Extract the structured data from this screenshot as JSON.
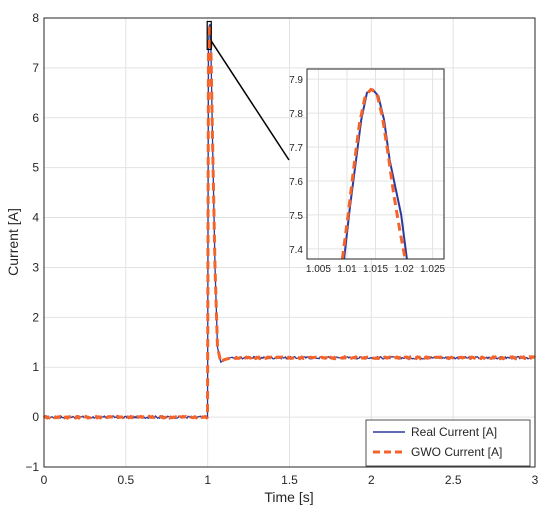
{
  "chart_data": [
    {
      "type": "line",
      "xlabel": "Time [s]",
      "ylabel": "Current [A]",
      "xlim": [
        0,
        3
      ],
      "ylim": [
        -1,
        8
      ],
      "xticks": [
        0,
        0.5,
        1,
        1.5,
        2,
        2.5,
        3
      ],
      "xtick_labels": [
        "0",
        "0.5",
        "1",
        "1.5",
        "2",
        "2.5",
        "3"
      ],
      "yticks": [
        -1,
        0,
        1,
        2,
        3,
        4,
        5,
        6,
        7,
        8
      ],
      "ytick_labels": [
        "−1",
        "0",
        "1",
        "2",
        "3",
        "4",
        "5",
        "6",
        "7",
        "8"
      ],
      "grid": true,
      "legend_position": "bottom-right",
      "series": [
        {
          "name": "Real Current [A]",
          "color": "#2b3a9b",
          "style": "solid",
          "x": [
            0,
            0.5,
            0.999,
            1.0,
            1.005,
            1.01,
            1.015,
            1.02,
            1.03,
            1.045,
            1.06,
            1.08,
            1.1,
            1.15,
            1.2,
            1.5,
            2,
            2.5,
            3
          ],
          "y": [
            0,
            0,
            0,
            1.0,
            7.4,
            7.85,
            7.87,
            7.35,
            5.5,
            3.0,
            1.4,
            1.1,
            1.15,
            1.18,
            1.19,
            1.19,
            1.19,
            1.19,
            1.19
          ]
        },
        {
          "name": "GWO Current [A]",
          "color": "#f4632a",
          "style": "dashed",
          "x": [
            0,
            0.5,
            0.999,
            1.0,
            1.005,
            1.01,
            1.015,
            1.02,
            1.03,
            1.045,
            1.06,
            1.08,
            1.1,
            1.15,
            1.2,
            1.5,
            2,
            2.5,
            3
          ],
          "y": [
            0,
            0,
            0,
            1.0,
            7.4,
            7.84,
            7.87,
            7.37,
            5.5,
            3.0,
            1.4,
            1.1,
            1.15,
            1.18,
            1.19,
            1.19,
            1.19,
            1.19,
            1.19
          ]
        }
      ]
    },
    {
      "type": "line",
      "xlim": [
        1.003,
        1.027
      ],
      "ylim": [
        7.37,
        7.93
      ],
      "xticks": [
        1.005,
        1.01,
        1.015,
        1.02,
        1.025
      ],
      "xtick_labels": [
        "1.005",
        "1.01",
        "1.015",
        "1.02",
        "1.025"
      ],
      "yticks": [
        7.4,
        7.5,
        7.6,
        7.7,
        7.8,
        7.9
      ],
      "ytick_labels": [
        "7.4",
        "7.5",
        "7.6",
        "7.7",
        "7.8",
        "7.9"
      ],
      "grid": true,
      "series": [
        {
          "name": "Real Current [A]",
          "color": "#2b3a9b",
          "style": "solid",
          "x": [
            1.0095,
            1.0105,
            1.0115,
            1.0125,
            1.0135,
            1.0145,
            1.0155,
            1.0165,
            1.0175,
            1.0185,
            1.0195,
            1.0205
          ],
          "y": [
            7.37,
            7.52,
            7.65,
            7.78,
            7.86,
            7.87,
            7.85,
            7.78,
            7.66,
            7.58,
            7.5,
            7.37
          ]
        },
        {
          "name": "GWO Current [A]",
          "color": "#f4632a",
          "style": "dashed",
          "x": [
            1.0092,
            1.0102,
            1.0112,
            1.0122,
            1.0132,
            1.0142,
            1.0152,
            1.0162,
            1.0172,
            1.0182,
            1.0192,
            1.0202
          ],
          "y": [
            7.37,
            7.5,
            7.64,
            7.77,
            7.85,
            7.87,
            7.86,
            7.79,
            7.68,
            7.56,
            7.46,
            7.37
          ]
        }
      ]
    }
  ]
}
